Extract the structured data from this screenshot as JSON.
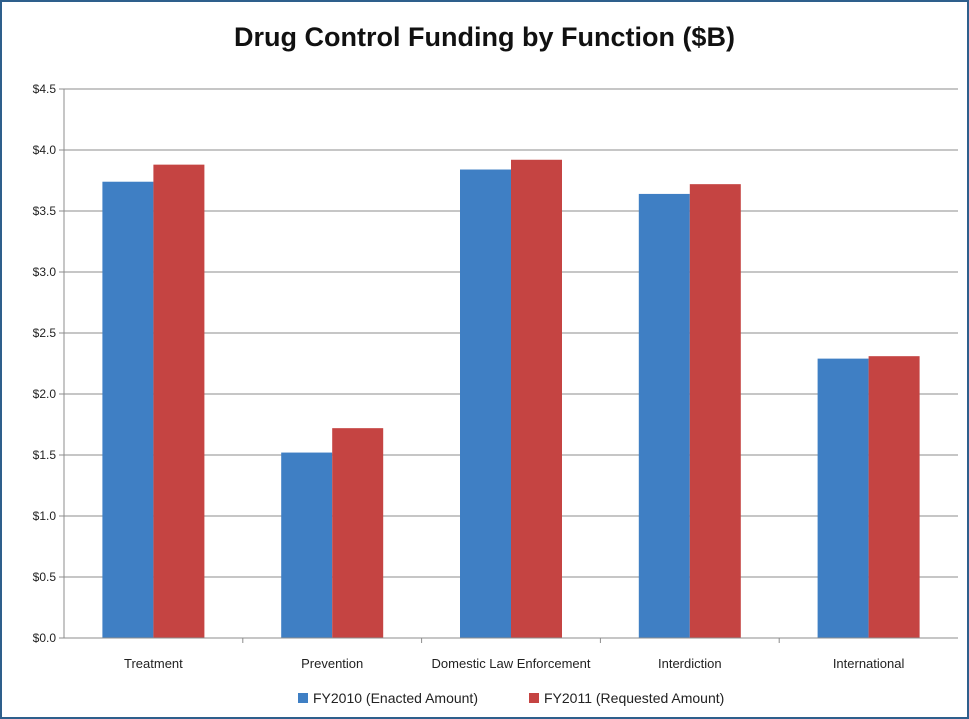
{
  "chart_data": {
    "type": "bar",
    "title": "Drug Control Funding by Function ($B)",
    "categories": [
      "Treatment",
      "Prevention",
      "Domestic Law Enforcement",
      "Interdiction",
      "International"
    ],
    "series": [
      {
        "name": "FY2010 (Enacted Amount)",
        "values": [
          3.74,
          1.52,
          3.84,
          3.64,
          2.29
        ],
        "color": "#3f7fc4"
      },
      {
        "name": "FY2011 (Requested Amount)",
        "values": [
          3.88,
          1.72,
          3.92,
          3.72,
          2.31
        ],
        "color": "#c54442"
      }
    ],
    "yticks": [
      "$0.0",
      "$0.5",
      "$1.0",
      "$1.5",
      "$2.0",
      "$2.5",
      "$3.0",
      "$3.5",
      "$4.0",
      "$4.5"
    ],
    "ylim": [
      0,
      4.5
    ],
    "xlabel": "",
    "ylabel": "",
    "grid": true,
    "legend_position": "bottom"
  }
}
